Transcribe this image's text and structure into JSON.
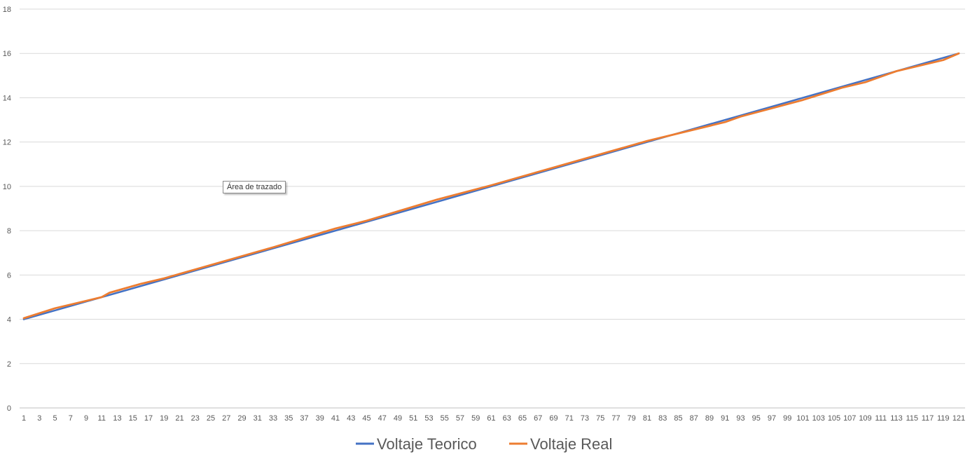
{
  "tooltip": {
    "text": "Área de trazado"
  },
  "colors": {
    "teorico": "#4472C4",
    "real": "#ED7D31",
    "grid": "#D9D9D9",
    "text": "#595959"
  },
  "chart_data": {
    "type": "line",
    "title": "",
    "xlabel": "",
    "ylabel": "",
    "ylim": [
      0,
      18
    ],
    "yticks": [
      0,
      2,
      4,
      6,
      8,
      10,
      12,
      14,
      16,
      18
    ],
    "x_range": [
      1,
      121
    ],
    "x_tick_step": 2,
    "grid": true,
    "legend": "bottom",
    "series": [
      {
        "name": "Voltaje Teorico",
        "color": "#4472C4",
        "x": [
          1,
          121
        ],
        "values": [
          4,
          16
        ]
      },
      {
        "name": "Voltaje Real",
        "color": "#ED7D31",
        "x": [
          1,
          5,
          11,
          12,
          16,
          19,
          25,
          33,
          41,
          45,
          54,
          61,
          69,
          81,
          91,
          93,
          101,
          106,
          109,
          113,
          119,
          121
        ],
        "values": [
          4.05,
          4.5,
          5.0,
          5.2,
          5.6,
          5.85,
          6.45,
          7.25,
          8.1,
          8.45,
          9.4,
          10.05,
          10.85,
          12.05,
          12.9,
          13.15,
          13.9,
          14.45,
          14.7,
          15.2,
          15.7,
          16.0
        ]
      }
    ]
  }
}
